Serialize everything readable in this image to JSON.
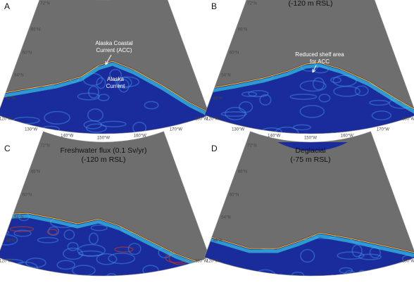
{
  "panels": [
    {
      "letter": "A",
      "title_lines": [],
      "annotations": [
        {
          "lines": [
            "Alaska Coastal",
            "Current (ACC)"
          ]
        },
        {
          "lines": [
            "Alaska",
            "Current"
          ]
        }
      ],
      "lat_labels": [
        "72°N",
        "66°N",
        "60°N",
        "54°N",
        "48°N"
      ],
      "lon_labels": [
        "180°W",
        "170°W",
        "160°W",
        "150°W",
        "140°W",
        "130°W",
        "120°W"
      ]
    },
    {
      "letter": "B",
      "title_lines": [
        "(-120 m RSL)"
      ],
      "annotations": [
        {
          "lines": [
            "Reduced shelf area",
            "for ACC"
          ]
        }
      ],
      "lat_labels": [
        "72°N",
        "66°N",
        "60°N",
        "54°N",
        "48°N"
      ],
      "lon_labels": [
        "180°W",
        "170°W",
        "160°W",
        "150°W",
        "140°W",
        "130°W",
        "120°W"
      ]
    },
    {
      "letter": "C",
      "title_lines": [
        "Freshwater flux (0.1 Sv/yr)",
        "(-120 m RSL)"
      ],
      "annotations": [],
      "lat_labels": [
        "72°N",
        "66°N",
        "60°N",
        "54°N",
        "48°N"
      ],
      "lon_labels": [
        "180°W",
        "120°W"
      ]
    },
    {
      "letter": "D",
      "title_lines": [
        "Deglacial",
        "(-75 m RSL)"
      ],
      "annotations": [],
      "lat_labels": [
        "72°N",
        "66°N",
        "60°N",
        "54°N",
        "48°N"
      ],
      "lon_labels": [
        "180°W",
        "120°W"
      ]
    }
  ]
}
